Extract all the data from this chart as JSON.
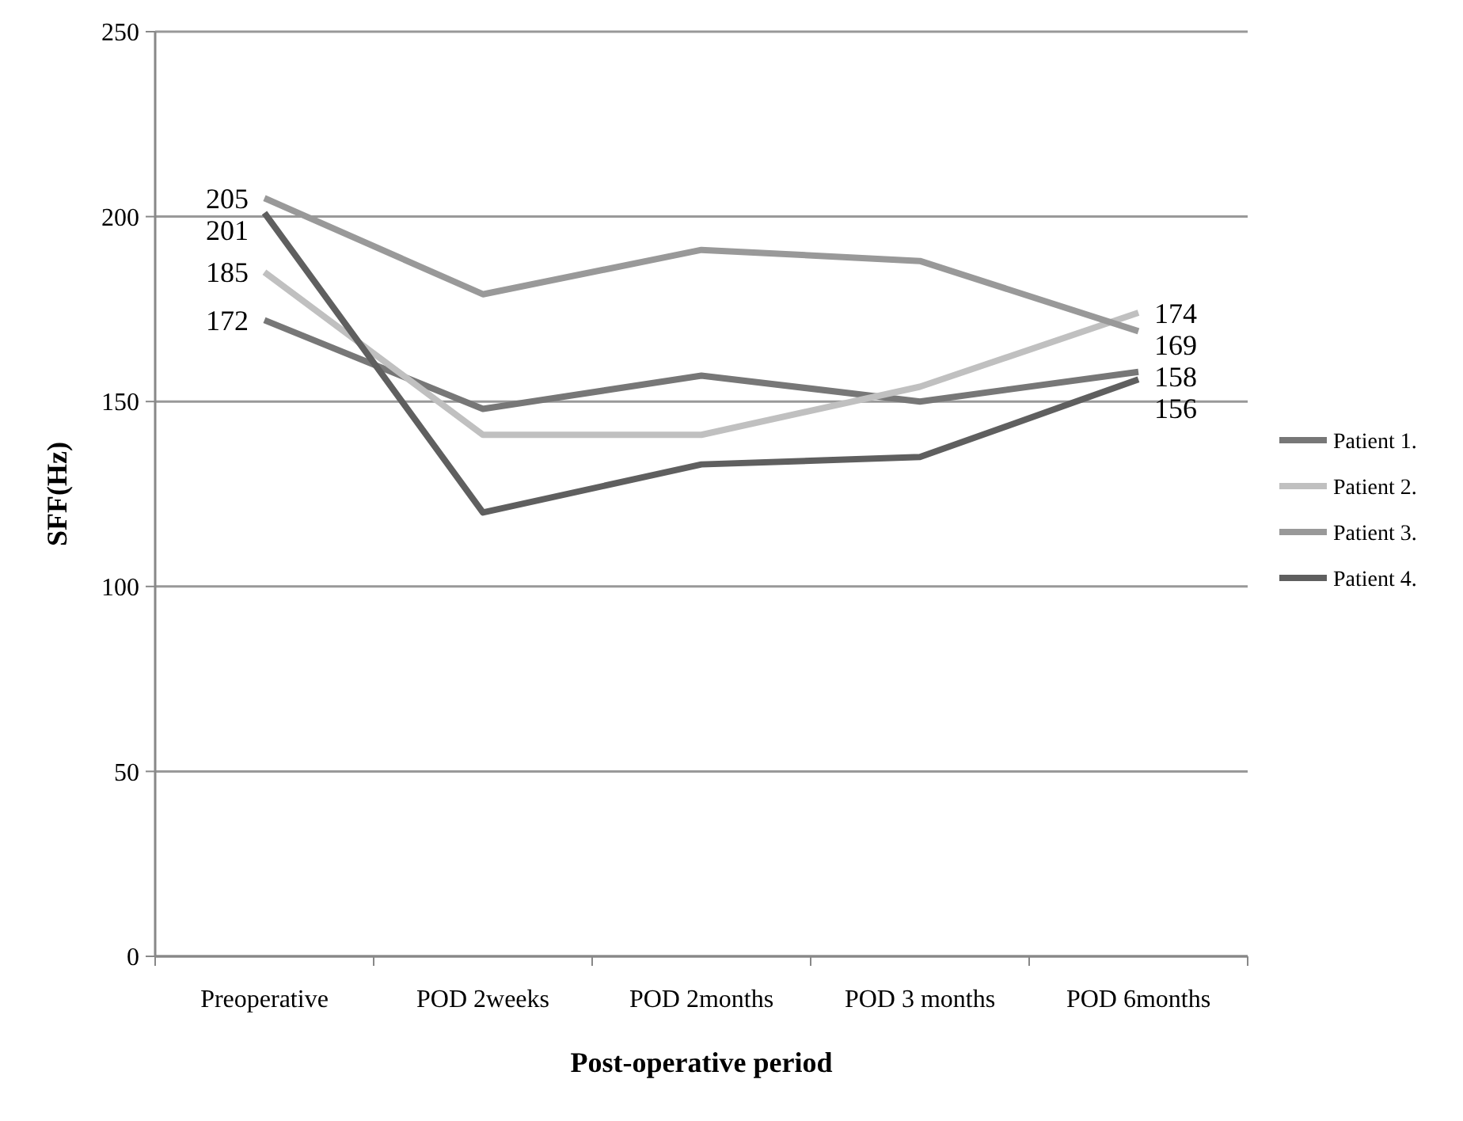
{
  "chart_data": {
    "type": "line",
    "xlabel": "Post-operative period",
    "ylabel": "SFF(Hz)",
    "categories": [
      "Preoperative",
      "POD 2weeks",
      "POD 2months",
      "POD 3 months",
      "POD 6months"
    ],
    "series": [
      {
        "name": "Patient 1.",
        "color": "#777777",
        "values": [
          172,
          148,
          157,
          150,
          158
        ],
        "value_labels": [
          "172",
          null,
          null,
          null,
          "158"
        ]
      },
      {
        "name": "Patient 2.",
        "color": "#c0c0c0",
        "values": [
          185,
          141,
          141,
          154,
          174
        ],
        "value_labels": [
          "185",
          null,
          null,
          null,
          "174"
        ]
      },
      {
        "name": "Patient 3.",
        "color": "#999999",
        "values": [
          205,
          179,
          191,
          188,
          169
        ],
        "value_labels": [
          "205",
          null,
          null,
          null,
          "169"
        ]
      },
      {
        "name": "Patient 4.",
        "color": "#5f5f5f",
        "values": [
          201,
          120,
          133,
          135,
          156
        ],
        "value_labels": [
          "201",
          null,
          null,
          null,
          "156"
        ]
      }
    ],
    "ylim": [
      0,
      250
    ],
    "yticks": [
      0,
      50,
      100,
      150,
      200,
      250
    ],
    "grid": "y",
    "legend": "right",
    "marker": "none",
    "line_style": "solid"
  }
}
